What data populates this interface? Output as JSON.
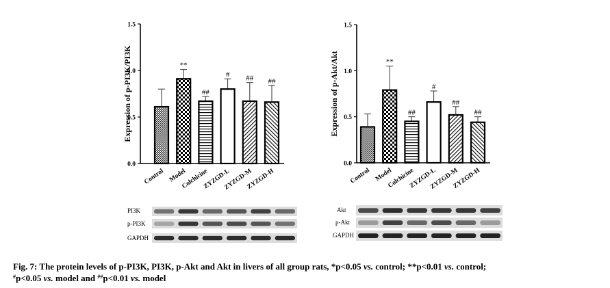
{
  "chart_data": [
    {
      "type": "bar",
      "ylabel": "Expression of p-PI3K/PI3K",
      "categories": [
        "Control",
        "Model",
        "Colchicine",
        "ZYZGD-L",
        "ZYZGD-M",
        "ZYZGD-H"
      ],
      "values": [
        0.61,
        0.91,
        0.67,
        0.8,
        0.67,
        0.66
      ],
      "errors": [
        0.19,
        0.1,
        0.05,
        0.11,
        0.2,
        0.18
      ],
      "annotations": [
        "",
        "**",
        "##",
        "#",
        "##",
        "##"
      ],
      "ylim": [
        0,
        1.5
      ],
      "yticks": [
        "0.0",
        "0.5",
        "1.0",
        "1.5"
      ],
      "blot_labels": [
        "PI3K",
        "p-PI3K",
        "GAPDH"
      ]
    },
    {
      "type": "bar",
      "ylabel": "Expression of p-Akt/Akt",
      "categories": [
        "Control",
        "Model",
        "Colchicine",
        "ZYZGD-L",
        "ZYZGD-M",
        "ZYZGD-H"
      ],
      "values": [
        0.39,
        0.79,
        0.45,
        0.66,
        0.52,
        0.44
      ],
      "errors": [
        0.14,
        0.26,
        0.05,
        0.12,
        0.09,
        0.06
      ],
      "annotations": [
        "",
        "**",
        "##",
        "#",
        "##",
        "##"
      ],
      "ylim": [
        0,
        1.5
      ],
      "yticks": [
        "0.0",
        "0.5",
        "1.0",
        "1.5"
      ],
      "blot_labels": [
        "Akt",
        "p-Akt",
        "GAPDH"
      ]
    }
  ],
  "caption": {
    "fig": "Fig. 7:",
    "line1_a": "The protein levels of p-PI3K, PI3K, p-Akt and Akt in livers of all group rats, *p<0.05",
    "vs": "vs.",
    "line1_b": "control; **p<0.01",
    "line1_c": "control;",
    "hash1": "#",
    "line2_a": "p<0.05",
    "line2_b": "model and",
    "hash2": "##",
    "line2_c": "p<0.01",
    "line2_d": "model"
  },
  "patterns": [
    "crosshatch",
    "checker",
    "horizontal-lines",
    "white",
    "diagonal-right",
    "diagonal-left"
  ]
}
